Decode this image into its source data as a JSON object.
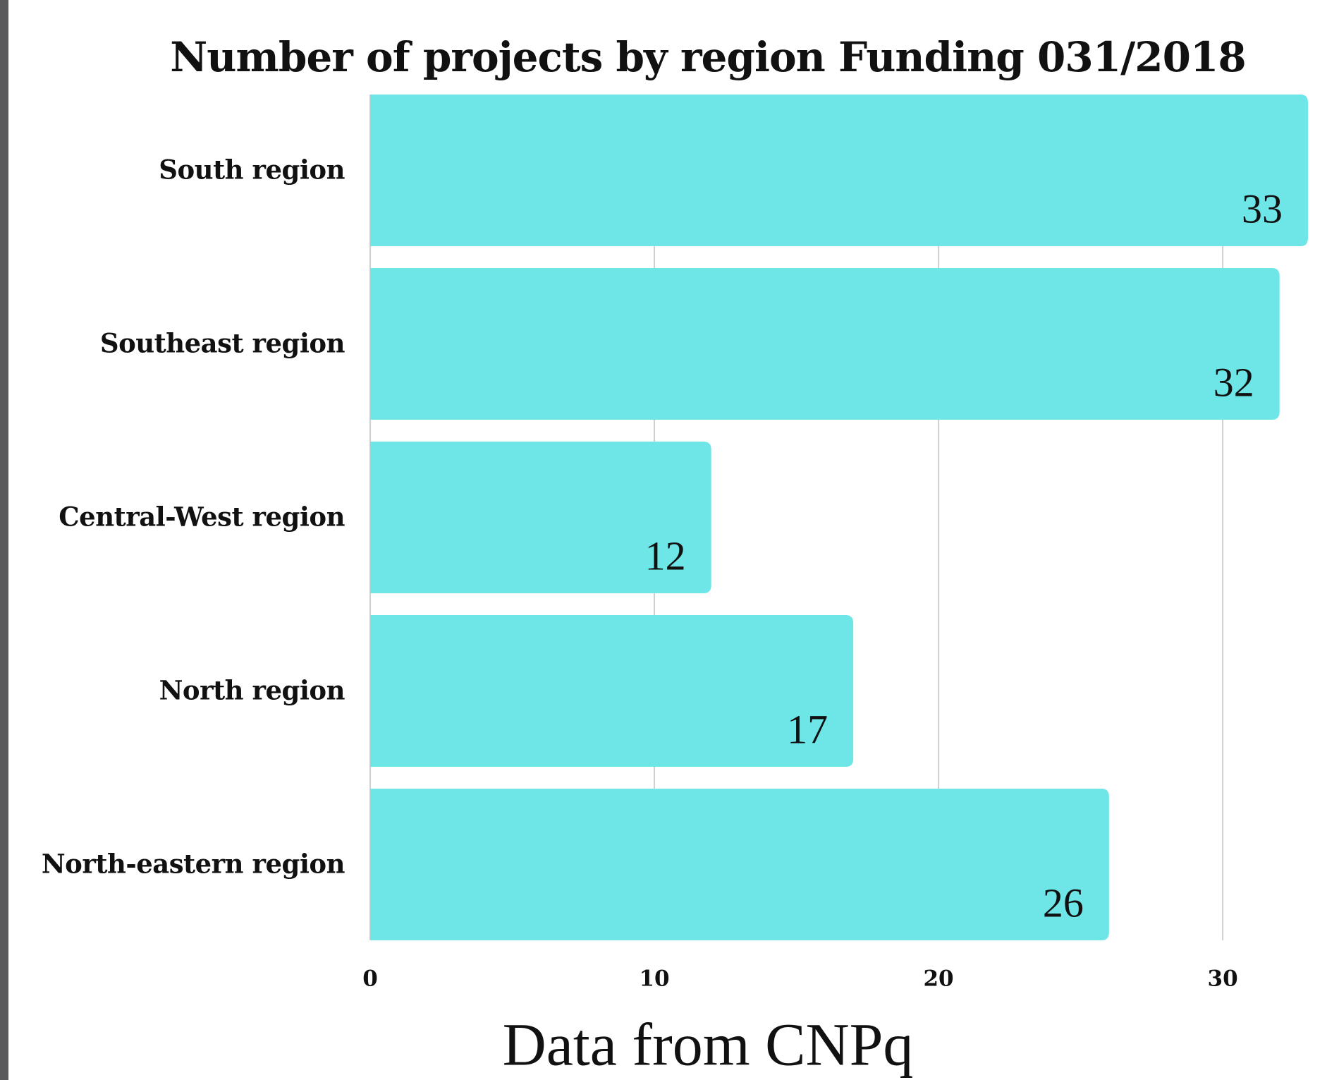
{
  "chart_data": {
    "type": "bar",
    "orientation": "horizontal",
    "title": "Number of projects by region Funding 031/2018",
    "caption": "Data from CNPq",
    "categories": [
      "South region",
      "Southeast region",
      "Central-West region",
      "North region",
      "North-eastern region"
    ],
    "values": [
      33,
      32,
      12,
      17,
      26
    ],
    "color": "#6ee6e8",
    "xlim": [
      0,
      33
    ],
    "xticks": [
      0,
      10,
      20,
      30
    ],
    "grid": true
  }
}
